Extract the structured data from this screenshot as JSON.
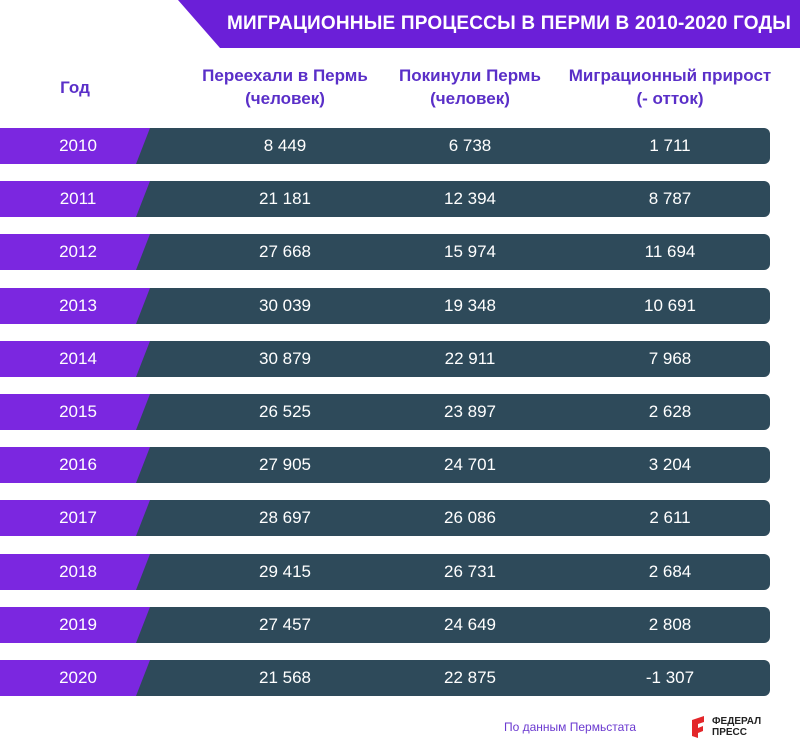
{
  "title": "МИГРАЦИОННЫЕ ПРОЦЕССЫ В ПЕРМИ В 2010-2020 ГОДЫ",
  "headers": {
    "year": "Год",
    "arrived_line1": "Переехали в Пермь",
    "arrived_line2": "(человек)",
    "left_line1": "Покинули Пермь",
    "left_line2": "(человек)",
    "net_line1": "Миграционный прирост",
    "net_line2": "(- отток)"
  },
  "source": "По данным Пермьстата",
  "logo": {
    "line1": "ФЕДЕРАЛ",
    "line2": "ПРЕСС"
  },
  "colors": {
    "purple": "#7b27e0",
    "row_bg": "#2e4a5a",
    "header_text": "#5a2fc8"
  },
  "chart_data": {
    "type": "table",
    "title": "МИГРАЦИОННЫЕ ПРОЦЕССЫ В ПЕРМИ В 2010-2020 ГОДЫ",
    "columns": [
      "Год",
      "Переехали в Пермь (человек)",
      "Покинули Пермь (человек)",
      "Миграционный прирост (- отток)"
    ],
    "rows": [
      [
        "2010",
        "8 449",
        "6 738",
        "1 711"
      ],
      [
        "2011",
        "21 181",
        "12 394",
        "8 787"
      ],
      [
        "2012",
        "27 668",
        "15 974",
        "11 694"
      ],
      [
        "2013",
        "30 039",
        "19 348",
        "10 691"
      ],
      [
        "2014",
        "30 879",
        "22 911",
        "7 968"
      ],
      [
        "2015",
        "26 525",
        "23 897",
        "2 628"
      ],
      [
        "2016",
        "27 905",
        "24 701",
        "3 204"
      ],
      [
        "2017",
        "28 697",
        "26 086",
        "2 611"
      ],
      [
        "2018",
        "29 415",
        "26 731",
        "2 684"
      ],
      [
        "2019",
        "27 457",
        "24 649",
        "2 808"
      ],
      [
        "2020",
        "21 568",
        "22 875",
        "-1 307"
      ]
    ]
  }
}
